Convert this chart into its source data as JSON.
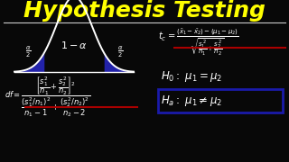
{
  "background_color": "#080808",
  "title": "Hypothesis Testing",
  "title_color": "#ffff00",
  "title_fontsize": 18,
  "bell_shade_color": "#2222aa",
  "red_line_color": "#aa0000",
  "blue_box_color": "#1a1aaa"
}
